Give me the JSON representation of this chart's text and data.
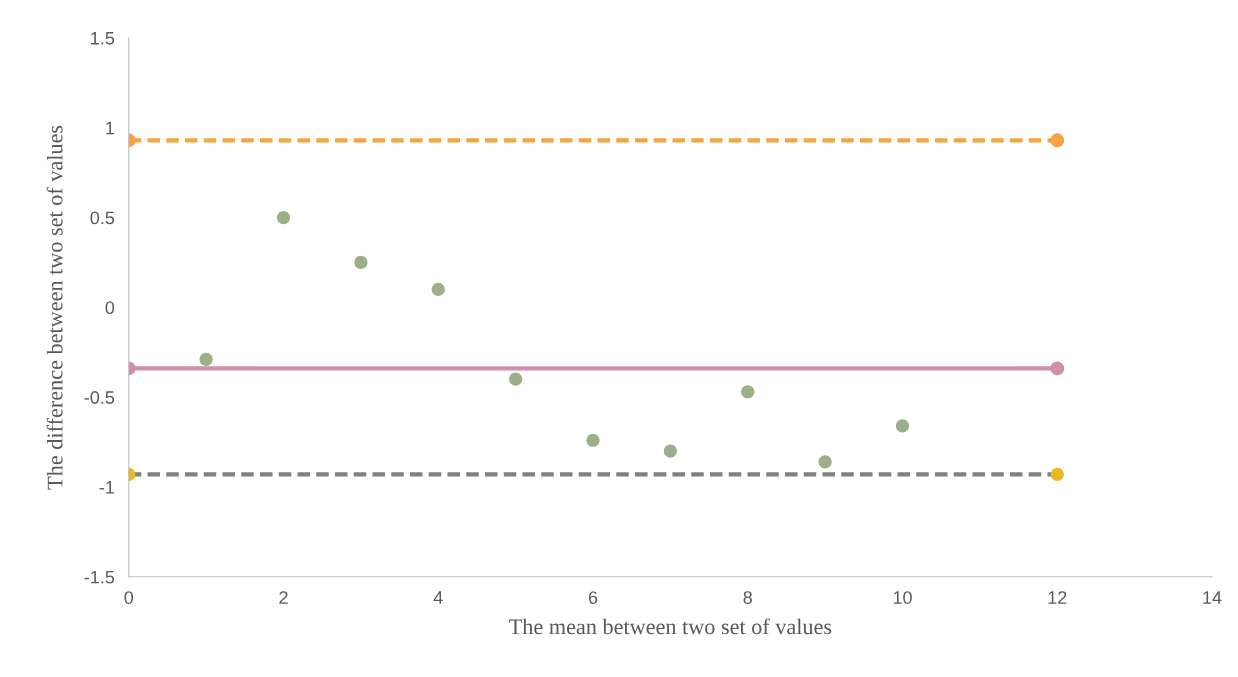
{
  "chart_data": {
    "type": "scatter",
    "xlabel": "The mean between two set of values",
    "ylabel": "The difference between two set of values",
    "xlim": [
      0,
      14
    ],
    "xticks": [
      0,
      2,
      4,
      6,
      8,
      10,
      12,
      14
    ],
    "ylim": [
      -1.5,
      1.5
    ],
    "yticks": [
      -1.5,
      -1,
      -0.5,
      0,
      0.5,
      1,
      1.5
    ],
    "grid": false,
    "legend": false,
    "series": [
      {
        "type": "line",
        "color": "#f4a442",
        "x": [
          0,
          12
        ],
        "values": [
          0.93,
          0.93
        ],
        "line_style": "dashed",
        "marker": "circle"
      },
      {
        "type": "line",
        "color": "#d18fab",
        "x": [
          0,
          12
        ],
        "values": [
          -0.34,
          -0.34
        ],
        "line_style": "solid",
        "marker": "circle"
      },
      {
        "type": "line",
        "color": "#808080",
        "x": [
          0,
          12
        ],
        "values": [
          -0.93,
          -0.93
        ],
        "line_style": "dashed",
        "marker": "none"
      },
      {
        "type": "scatter",
        "color": "#e8b923",
        "x": [
          0,
          12
        ],
        "values": [
          -0.93,
          -0.93
        ],
        "marker": "circle"
      },
      {
        "color": "#9caf88",
        "x": [
          1,
          2,
          3,
          4,
          5,
          6,
          7,
          8,
          9,
          10
        ],
        "values": [
          -0.29,
          0.5,
          0.25,
          0.1,
          -0.4,
          -0.74,
          -0.8,
          -0.47,
          -0.86,
          -0.66
        ],
        "marker": "circle"
      }
    ]
  }
}
